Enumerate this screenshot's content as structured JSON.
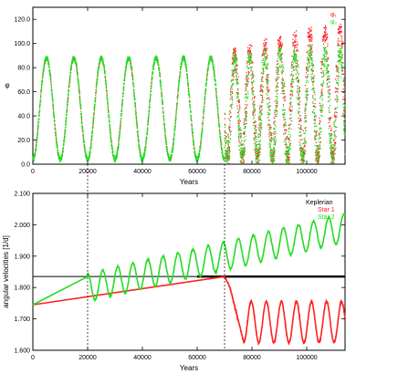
{
  "chart_data": [
    {
      "type": "scatter",
      "xlabel": "Years",
      "ylabel": "φ",
      "xlim": [
        0,
        114000
      ],
      "ylim": [
        0,
        130
      ],
      "xticks": [
        0,
        20000,
        40000,
        60000,
        80000,
        100000
      ],
      "xtick_labels": [
        "0",
        "20000",
        "40000",
        "60000",
        "80000",
        "100000"
      ],
      "yticks": [
        0,
        20,
        40,
        60,
        80,
        100,
        120
      ],
      "ytick_labels": [
        "0.0",
        "20.0",
        "40.0",
        "60.0",
        "80.0",
        "100.0",
        "120.0"
      ],
      "legend_position": "top-right",
      "grid": false,
      "series": [
        {
          "name": "φ₁",
          "color": "#ff2020",
          "phase1": {
            "x_range": [
              0,
              70000
            ],
            "period": 10000,
            "min": 4,
            "max": 88
          },
          "phase2": {
            "x_range": [
              70000,
              114000
            ],
            "period": 5500,
            "min": 5,
            "max_envelope": {
              "x": [
                70000,
                80000,
                90000,
                100000,
                110000
              ],
              "y": [
                90,
                95,
                103,
                108,
                112
              ]
            }
          }
        },
        {
          "name": "φ₂",
          "color": "#22dd22",
          "phase1": {
            "x_range": [
              0,
              70000
            ],
            "period": 10000,
            "min": 4,
            "max": 88
          },
          "phase2": {
            "x_range": [
              70000,
              114000
            ],
            "period": 5500,
            "min": 5,
            "max_envelope": {
              "x": [
                70000,
                80000,
                90000,
                100000,
                110000
              ],
              "y": [
                88,
                90,
                92,
                93,
                94
              ]
            }
          }
        }
      ]
    },
    {
      "type": "line",
      "xlabel": "Years",
      "ylabel": "angular velocities [1/d]",
      "xlim": [
        0,
        114000
      ],
      "ylim": [
        1.6,
        2.1
      ],
      "xticks": [
        0,
        20000,
        40000,
        60000,
        80000,
        100000
      ],
      "xtick_labels": [
        "0",
        "20000",
        "40000",
        "60000",
        "80000",
        "100000"
      ],
      "yticks": [
        1.6,
        1.7,
        1.8,
        1.9,
        2.0,
        2.1
      ],
      "ytick_labels": [
        "1.600",
        "1.700",
        "1.800",
        "1.900",
        "2.000",
        "2.100"
      ],
      "legend_position": "top-right",
      "grid": false,
      "series": [
        {
          "name": "Keplerian",
          "color": "#000000",
          "y_constant": 1.835,
          "thick_from": 60000
        },
        {
          "name": "Star 1",
          "color": "#ff2020",
          "trend": {
            "x": [
              0,
              70000
            ],
            "y": [
              1.745,
              1.835
            ]
          },
          "oscillation": {
            "x_range": [
              70000,
              114000
            ],
            "period": 5500,
            "min": 1.625,
            "max": 1.755,
            "drop_at": 72000,
            "drop_to": 1.625
          }
        },
        {
          "name": "Star 2",
          "color": "#22dd22",
          "trend": {
            "x": [
              0,
              20000
            ],
            "y": [
              1.745,
              1.835
            ]
          },
          "oscillation": {
            "x_range": [
              20000,
              114000
            ],
            "period": 5500,
            "base": {
              "x": [
                20000,
                70000,
                114000
              ],
              "y": [
                1.8,
                1.9,
                1.99
              ]
            },
            "amplitude": 0.045
          }
        }
      ]
    }
  ],
  "markers": {
    "vertical_lines_x": [
      20000,
      70000
    ]
  }
}
